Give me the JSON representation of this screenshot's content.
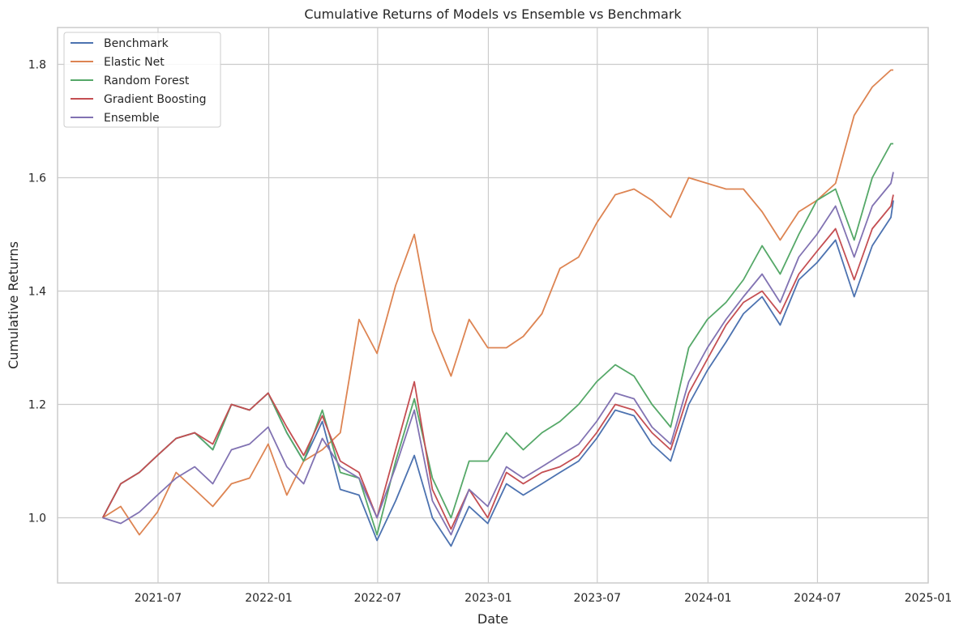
{
  "chart_data": {
    "type": "line",
    "title": "Cumulative Returns of Models vs Ensemble vs Benchmark",
    "xlabel": "Date",
    "ylabel": "Cumulative Returns",
    "xlim": [
      "2021-01-15",
      "2025-01-01"
    ],
    "ylim": [
      0.885,
      1.865
    ],
    "x_ticks": [
      "2021-07",
      "2022-01",
      "2022-07",
      "2023-01",
      "2023-07",
      "2024-01",
      "2024-07",
      "2025-01"
    ],
    "y_ticks": [
      "1.0",
      "1.2",
      "1.4",
      "1.6",
      "1.8"
    ],
    "grid": true,
    "legend_position": "top-left",
    "x": [
      "2021-03-31",
      "2021-04-30",
      "2021-05-31",
      "2021-06-30",
      "2021-07-31",
      "2021-08-31",
      "2021-09-30",
      "2021-10-31",
      "2021-11-30",
      "2021-12-31",
      "2022-01-31",
      "2022-02-28",
      "2022-03-31",
      "2022-04-30",
      "2022-05-31",
      "2022-06-30",
      "2022-07-31",
      "2022-08-31",
      "2022-09-30",
      "2022-10-31",
      "2022-11-30",
      "2022-12-31",
      "2023-01-31",
      "2023-02-28",
      "2023-03-31",
      "2023-04-30",
      "2023-05-31",
      "2023-06-30",
      "2023-07-31",
      "2023-08-31",
      "2023-09-30",
      "2023-10-31",
      "2023-11-30",
      "2023-12-31",
      "2024-01-31",
      "2024-02-29",
      "2024-03-31",
      "2024-04-30",
      "2024-05-31",
      "2024-06-30",
      "2024-07-31",
      "2024-08-31",
      "2024-09-30",
      "2024-10-31",
      "2024-11-04"
    ],
    "series": [
      {
        "name": "Benchmark",
        "color": "#4c72b0",
        "values": [
          1.0,
          1.06,
          1.08,
          1.11,
          1.14,
          1.15,
          1.12,
          1.2,
          1.19,
          1.22,
          1.15,
          1.1,
          1.17,
          1.05,
          1.04,
          0.96,
          1.03,
          1.11,
          1.0,
          0.95,
          1.02,
          0.99,
          1.06,
          1.04,
          1.06,
          1.08,
          1.1,
          1.14,
          1.19,
          1.18,
          1.13,
          1.1,
          1.2,
          1.26,
          1.31,
          1.36,
          1.39,
          1.34,
          1.42,
          1.45,
          1.49,
          1.39,
          1.48,
          1.53,
          1.56
        ]
      },
      {
        "name": "Elastic Net",
        "color": "#dd8452",
        "values": [
          1.0,
          1.02,
          0.97,
          1.01,
          1.08,
          1.05,
          1.02,
          1.06,
          1.07,
          1.13,
          1.04,
          1.1,
          1.12,
          1.15,
          1.35,
          1.29,
          1.41,
          1.5,
          1.33,
          1.25,
          1.35,
          1.3,
          1.3,
          1.32,
          1.36,
          1.44,
          1.46,
          1.52,
          1.57,
          1.58,
          1.56,
          1.53,
          1.6,
          1.59,
          1.58,
          1.58,
          1.54,
          1.49,
          1.54,
          1.56,
          1.59,
          1.71,
          1.76,
          1.79,
          1.79
        ]
      },
      {
        "name": "Random Forest",
        "color": "#55a868",
        "values": [
          1.0,
          1.06,
          1.08,
          1.11,
          1.14,
          1.15,
          1.12,
          1.2,
          1.19,
          1.22,
          1.15,
          1.1,
          1.19,
          1.08,
          1.07,
          0.97,
          1.1,
          1.21,
          1.07,
          1.0,
          1.1,
          1.1,
          1.15,
          1.12,
          1.15,
          1.17,
          1.2,
          1.24,
          1.27,
          1.25,
          1.2,
          1.16,
          1.3,
          1.35,
          1.38,
          1.42,
          1.48,
          1.43,
          1.5,
          1.56,
          1.58,
          1.49,
          1.6,
          1.66,
          1.66
        ]
      },
      {
        "name": "Gradient Boosting",
        "color": "#c44e52",
        "values": [
          1.0,
          1.06,
          1.08,
          1.11,
          1.14,
          1.15,
          1.13,
          1.2,
          1.19,
          1.22,
          1.16,
          1.11,
          1.18,
          1.1,
          1.08,
          1.0,
          1.12,
          1.24,
          1.05,
          0.98,
          1.05,
          1.0,
          1.08,
          1.06,
          1.08,
          1.09,
          1.11,
          1.15,
          1.2,
          1.19,
          1.15,
          1.12,
          1.22,
          1.28,
          1.34,
          1.38,
          1.4,
          1.36,
          1.43,
          1.47,
          1.51,
          1.42,
          1.51,
          1.55,
          1.57
        ]
      },
      {
        "name": "Ensemble",
        "color": "#8172b2",
        "values": [
          1.0,
          0.99,
          1.01,
          1.04,
          1.07,
          1.09,
          1.06,
          1.12,
          1.13,
          1.16,
          1.09,
          1.06,
          1.14,
          1.09,
          1.07,
          1.0,
          1.09,
          1.19,
          1.03,
          0.97,
          1.05,
          1.02,
          1.09,
          1.07,
          1.09,
          1.11,
          1.13,
          1.17,
          1.22,
          1.21,
          1.16,
          1.13,
          1.24,
          1.3,
          1.35,
          1.39,
          1.43,
          1.38,
          1.46,
          1.5,
          1.55,
          1.46,
          1.55,
          1.59,
          1.61
        ]
      }
    ]
  }
}
